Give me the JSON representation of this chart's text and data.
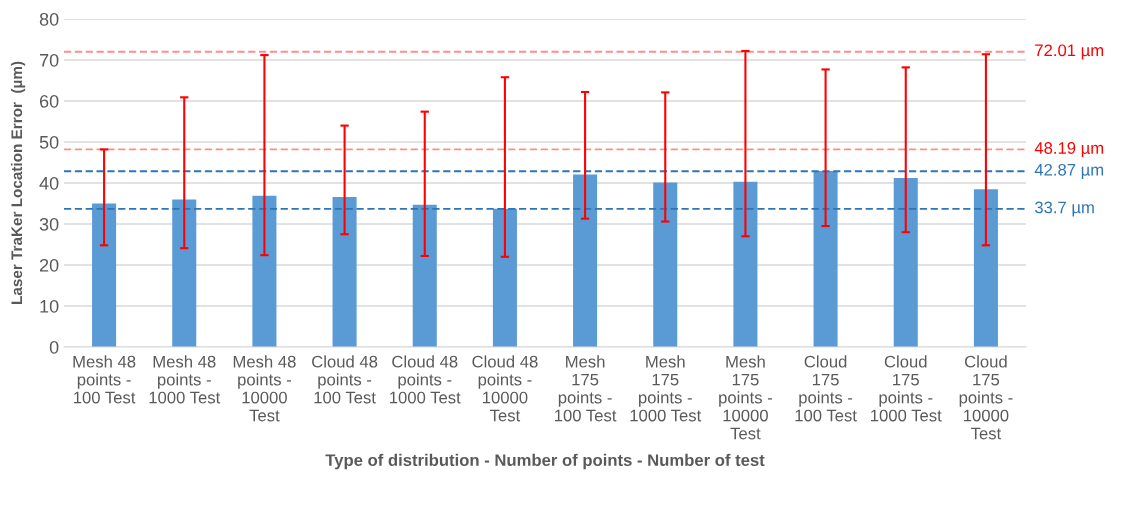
{
  "chart_data": {
    "type": "bar",
    "xlabel": "Type of distribution - Number of points - Number of test",
    "ylabel": "Laser TraKer Location Error  (µm)",
    "categories": [
      "Mesh 48\npoints -\n100 Test",
      "Mesh 48\npoints -\n1000 Test",
      "Mesh 48\npoints -\n10000\nTest",
      "Cloud 48\npoints -\n100 Test",
      "Cloud 48\npoints -\n1000 Test",
      "Cloud 48\npoints -\n10000\nTest",
      "Mesh\n175\npoints -\n100 Test",
      "Mesh\n175\npoints -\n1000 Test",
      "Mesh\n175\npoints -\n10000\nTest",
      "Cloud\n175\npoints -\n100 Test",
      "Cloud\n175\npoints -\n1000 Test",
      "Cloud\n175\npoints -\n10000\nTest"
    ],
    "values": [
      35.0,
      36.0,
      36.9,
      36.6,
      34.7,
      33.7,
      42.1,
      40.1,
      40.3,
      42.9,
      41.2,
      38.5
    ],
    "errors": [
      [
        24.8,
        48.2
      ],
      [
        24.1,
        60.9
      ],
      [
        22.4,
        71.2
      ],
      [
        27.5,
        54.0
      ],
      [
        22.2,
        57.4
      ],
      [
        22.0,
        65.8
      ],
      [
        31.3,
        62.2
      ],
      [
        30.6,
        62.1
      ],
      [
        27.0,
        72.2
      ],
      [
        29.5,
        67.7
      ],
      [
        28.0,
        68.2
      ],
      [
        24.8,
        71.4
      ]
    ],
    "color": "#5b9bd5",
    "ylim": [
      0,
      80
    ],
    "yticks": [
      0,
      10,
      20,
      30,
      40,
      50,
      60,
      70,
      80
    ],
    "grid": "y",
    "ref_lines": [
      {
        "axis": "y",
        "value": 72.01,
        "label": "72.01 µm",
        "color": "#ff0000",
        "line_style": "dashed"
      },
      {
        "axis": "y",
        "value": 48.19,
        "label": "48.19 µm",
        "color": "#ff0000",
        "line_style": "dashed"
      },
      {
        "axis": "y",
        "value": 42.87,
        "label": "42.87 µm",
        "color": "#2e75b6",
        "line_style": "dashed"
      },
      {
        "axis": "y",
        "value": 33.7,
        "label": "33.7 µm",
        "color": "#2e75b6",
        "line_style": "dashed"
      }
    ]
  }
}
